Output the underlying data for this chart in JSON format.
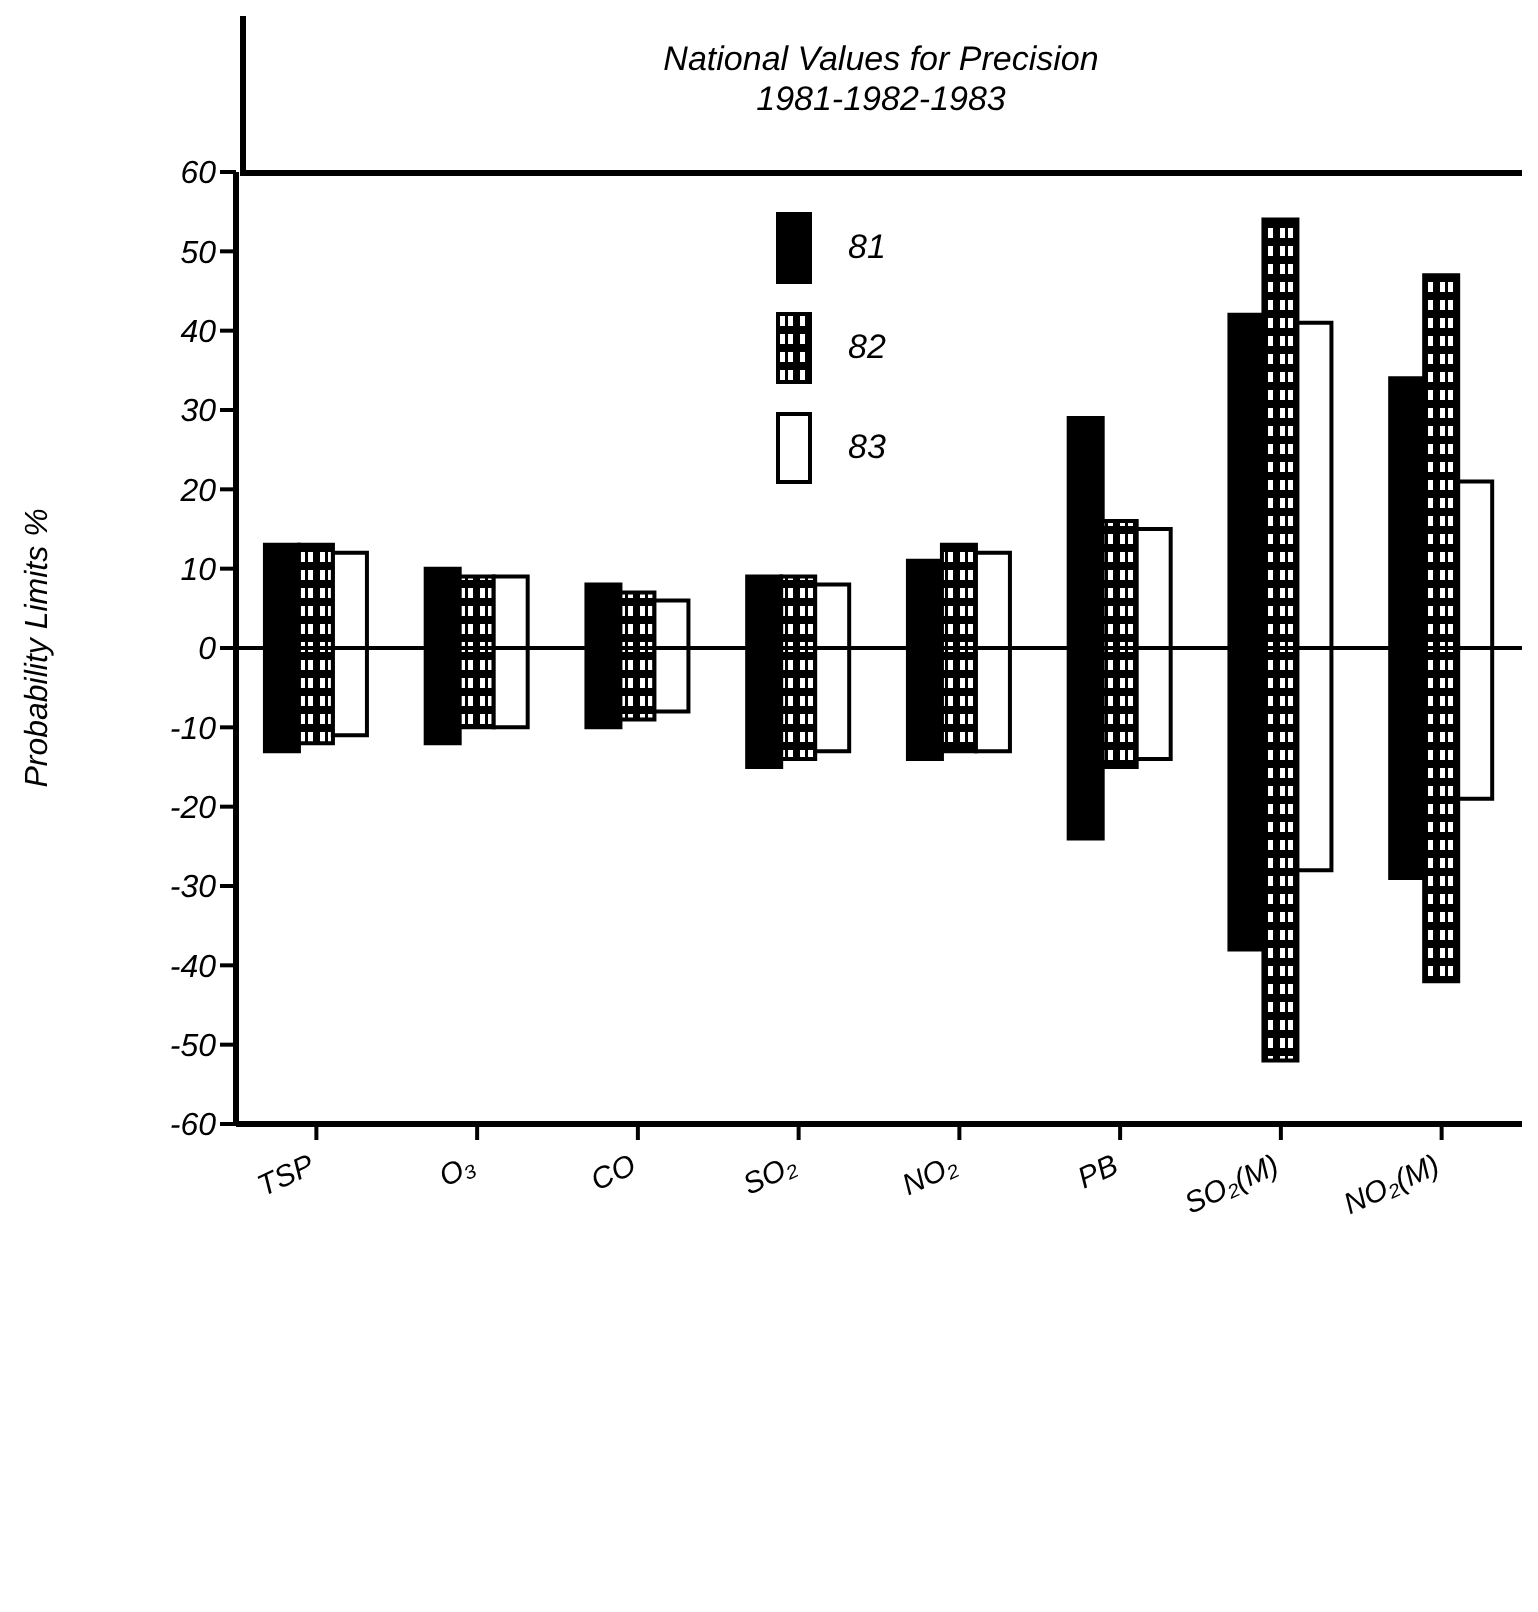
{
  "chart_data": {
    "type": "bar",
    "title": "National Values for Precision\n1981-1982-1983",
    "ylabel": "Probability Limits %",
    "categories": [
      "TSP",
      "O₃",
      "CO",
      "SO₂",
      "NO₂",
      "PB",
      "SO₂(M)",
      "NO₂(M)"
    ],
    "series": [
      {
        "name": "81",
        "color": "#000000",
        "base": [
          -13,
          -12,
          -10,
          -15,
          -14,
          -24,
          -38,
          -29
        ],
        "values": [
          26,
          22,
          18,
          24,
          25,
          53,
          80,
          63
        ]
      },
      {
        "name": "82",
        "color": "#000000",
        "base": [
          -12,
          -10,
          -9,
          -14,
          -13,
          -15,
          -52,
          -42
        ],
        "values": [
          25,
          19,
          16,
          23,
          26,
          31,
          106,
          89
        ]
      },
      {
        "name": "83",
        "color": "#ffffff",
        "base": [
          -11,
          -10,
          -8,
          -13,
          -13,
          -14,
          -28,
          -19
        ],
        "values": [
          23,
          19,
          14,
          21,
          25,
          29,
          69,
          40
        ]
      }
    ],
    "ylim": [
      -60,
      60
    ],
    "yticks": [
      -60,
      -50,
      -40,
      -30,
      -20,
      -10,
      0,
      10,
      20,
      30,
      40,
      50,
      60
    ],
    "ref_lines": [
      {
        "axis": "y",
        "value": 0
      }
    ],
    "legend": "top",
    "grid": false
  }
}
